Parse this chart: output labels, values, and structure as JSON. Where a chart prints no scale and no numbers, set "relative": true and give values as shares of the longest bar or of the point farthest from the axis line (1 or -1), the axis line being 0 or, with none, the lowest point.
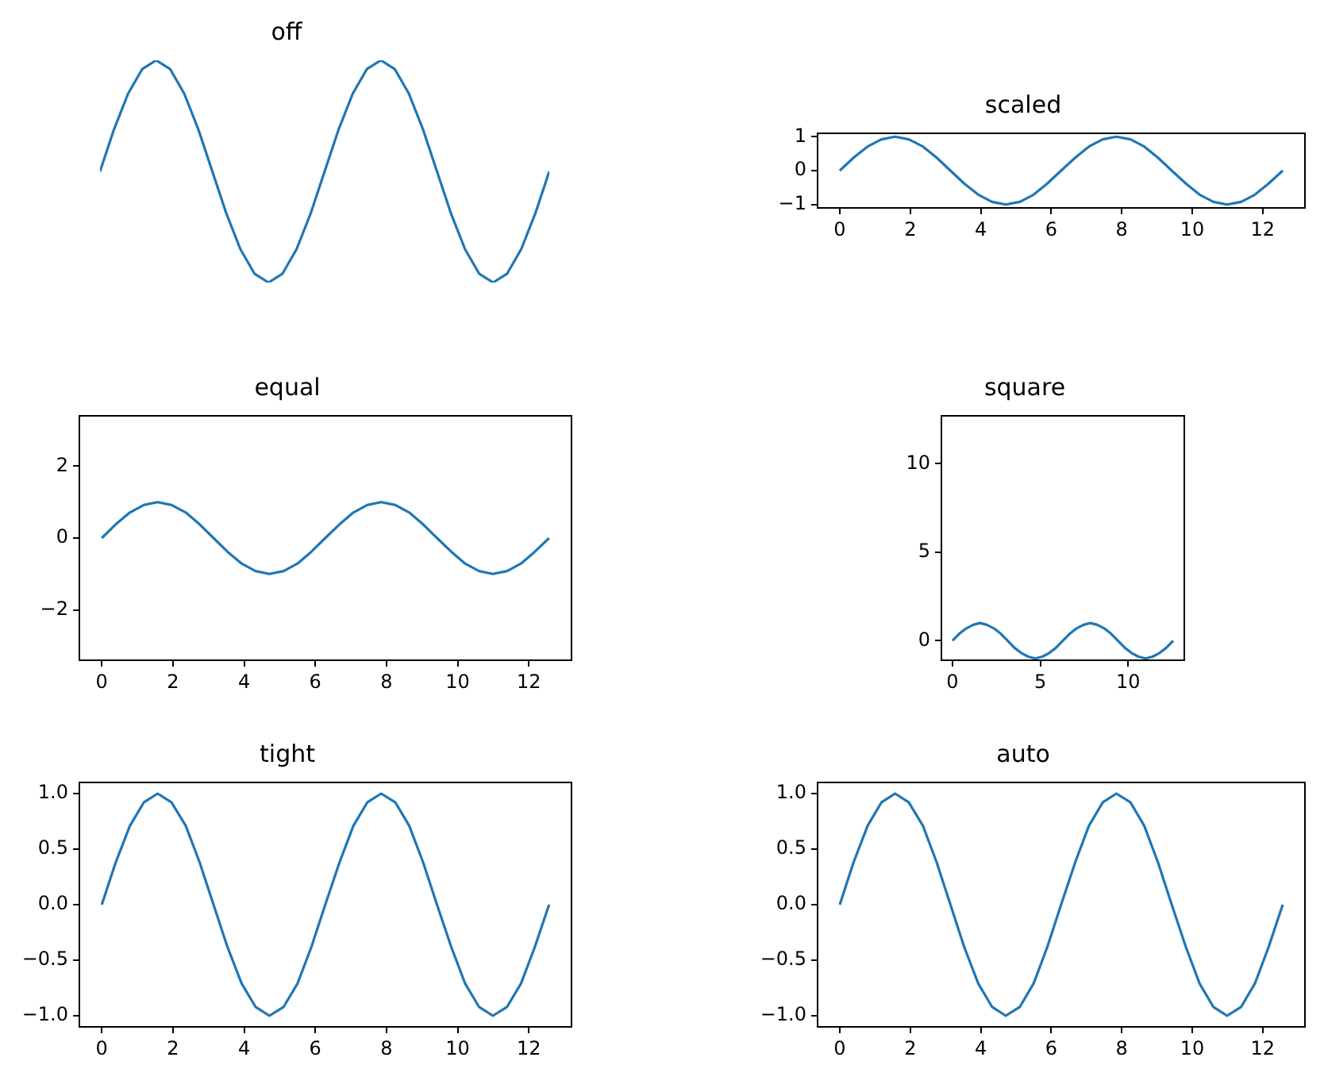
{
  "chart_data": [
    {
      "type": "line",
      "title": "off",
      "relative": true,
      "grid": false,
      "categories": [
        null,
        null,
        null,
        null,
        null,
        null,
        null,
        null,
        null,
        null,
        null,
        null,
        null,
        null,
        null,
        null,
        null,
        null,
        null,
        null,
        null,
        null,
        null,
        null,
        null,
        null,
        null,
        null,
        null,
        null,
        null,
        null,
        null
      ],
      "series": [
        {
          "color": "#1f77b4",
          "values": [
            0.5,
            0.69,
            0.85,
            0.96,
            1,
            0.96,
            0.85,
            0.69,
            0.5,
            0.31,
            0.15,
            0.04,
            0,
            0.04,
            0.15,
            0.31,
            0.5,
            0.69,
            0.85,
            0.96,
            1,
            0.96,
            0.85,
            0.69,
            0.5,
            0.31,
            0.15,
            0.04,
            0,
            0.04,
            0.15,
            0.31,
            0.5
          ]
        }
      ]
    },
    {
      "type": "line",
      "title": "scaled",
      "grid": false,
      "x": [
        0,
        0.39,
        0.79,
        1.18,
        1.57,
        1.96,
        2.36,
        2.75,
        3.14,
        3.53,
        3.93,
        4.32,
        4.71,
        5.11,
        5.5,
        5.89,
        6.28,
        6.68,
        7.07,
        7.46,
        7.85,
        8.25,
        8.64,
        9.03,
        9.42,
        9.82,
        10.21,
        10.6,
        10.99,
        11.39,
        11.78,
        12.17,
        12.57
      ],
      "series": [
        {
          "color": "#1f77b4",
          "values": [
            0,
            0.38,
            0.71,
            0.92,
            1,
            0.92,
            0.71,
            0.38,
            0,
            -0.38,
            -0.71,
            -0.92,
            -1,
            -0.92,
            -0.71,
            -0.38,
            0,
            0.38,
            0.71,
            0.92,
            1,
            0.92,
            0.71,
            0.38,
            0,
            -0.38,
            -0.71,
            -0.92,
            -1,
            -0.92,
            -0.71,
            -0.38,
            0
          ]
        }
      ],
      "xlim": [
        -0.63,
        13.2
      ],
      "ylim": [
        -1.1,
        1.1
      ],
      "xticks": [
        0,
        2,
        4,
        6,
        8,
        10,
        12
      ],
      "yticks": [
        {
          "value": -1,
          "label": "−1"
        },
        0,
        1
      ]
    },
    {
      "type": "line",
      "title": "equal",
      "grid": false,
      "x": [
        0,
        0.39,
        0.79,
        1.18,
        1.57,
        1.96,
        2.36,
        2.75,
        3.14,
        3.53,
        3.93,
        4.32,
        4.71,
        5.11,
        5.5,
        5.89,
        6.28,
        6.68,
        7.07,
        7.46,
        7.85,
        8.25,
        8.64,
        9.03,
        9.42,
        9.82,
        10.21,
        10.6,
        10.99,
        11.39,
        11.78,
        12.17,
        12.57
      ],
      "series": [
        {
          "color": "#1f77b4",
          "values": [
            0,
            0.38,
            0.71,
            0.92,
            1,
            0.92,
            0.71,
            0.38,
            0,
            -0.38,
            -0.71,
            -0.92,
            -1,
            -0.92,
            -0.71,
            -0.38,
            0,
            0.38,
            0.71,
            0.92,
            1,
            0.92,
            0.71,
            0.38,
            0,
            -0.38,
            -0.71,
            -0.92,
            -1,
            -0.92,
            -0.71,
            -0.38,
            0
          ]
        }
      ],
      "xlim": [
        -0.63,
        13.2
      ],
      "ylim": [
        -3.4,
        3.4
      ],
      "xticks": [
        0,
        2,
        4,
        6,
        8,
        10,
        12
      ],
      "yticks": [
        {
          "value": -2,
          "label": "−2"
        },
        0,
        2
      ]
    },
    {
      "type": "line",
      "title": "square",
      "grid": false,
      "x": [
        0,
        0.39,
        0.79,
        1.18,
        1.57,
        1.96,
        2.36,
        2.75,
        3.14,
        3.53,
        3.93,
        4.32,
        4.71,
        5.11,
        5.5,
        5.89,
        6.28,
        6.68,
        7.07,
        7.46,
        7.85,
        8.25,
        8.64,
        9.03,
        9.42,
        9.82,
        10.21,
        10.6,
        10.99,
        11.39,
        11.78,
        12.17,
        12.57
      ],
      "series": [
        {
          "color": "#1f77b4",
          "values": [
            0,
            0.4,
            0.7,
            0.9,
            1,
            0.9,
            0.7,
            0.4,
            0,
            -0.4,
            -0.7,
            -0.9,
            -1,
            -0.9,
            -0.7,
            -0.4,
            0,
            0.4,
            0.7,
            0.9,
            1,
            0.9,
            0.7,
            0.4,
            0,
            -0.4,
            -0.7,
            -0.9,
            -1,
            -0.9,
            -0.7,
            -0.4,
            0
          ]
        }
      ],
      "xlim": [
        -0.63,
        13.2
      ],
      "ylim": [
        -1.1,
        12.7
      ],
      "xticks": [
        0,
        5,
        10
      ],
      "yticks": [
        0,
        5,
        10
      ]
    },
    {
      "type": "line",
      "title": "tight",
      "grid": false,
      "x": [
        0,
        0.39,
        0.79,
        1.18,
        1.57,
        1.96,
        2.36,
        2.75,
        3.14,
        3.53,
        3.93,
        4.32,
        4.71,
        5.11,
        5.5,
        5.89,
        6.28,
        6.68,
        7.07,
        7.46,
        7.85,
        8.25,
        8.64,
        9.03,
        9.42,
        9.82,
        10.21,
        10.6,
        10.99,
        11.39,
        11.78,
        12.17,
        12.57
      ],
      "series": [
        {
          "color": "#1f77b4",
          "values": [
            0,
            0.38,
            0.71,
            0.92,
            1,
            0.92,
            0.71,
            0.38,
            0,
            -0.38,
            -0.71,
            -0.92,
            -1,
            -0.92,
            -0.71,
            -0.38,
            0,
            0.38,
            0.71,
            0.92,
            1,
            0.92,
            0.71,
            0.38,
            0,
            -0.38,
            -0.71,
            -0.92,
            -1,
            -0.92,
            -0.71,
            -0.38,
            0
          ]
        }
      ],
      "xlim": [
        -0.63,
        13.2
      ],
      "ylim": [
        -1.1,
        1.1
      ],
      "xticks": [
        0,
        2,
        4,
        6,
        8,
        10,
        12
      ],
      "yticks": [
        {
          "value": -1,
          "label": "−1.0"
        },
        {
          "value": -0.5,
          "label": "−0.5"
        },
        {
          "value": 0,
          "label": "0.0"
        },
        {
          "value": 0.5,
          "label": "0.5"
        },
        {
          "value": 1,
          "label": "1.0"
        }
      ]
    },
    {
      "type": "line",
      "title": "auto",
      "grid": false,
      "x": [
        0,
        0.39,
        0.79,
        1.18,
        1.57,
        1.96,
        2.36,
        2.75,
        3.14,
        3.53,
        3.93,
        4.32,
        4.71,
        5.11,
        5.5,
        5.89,
        6.28,
        6.68,
        7.07,
        7.46,
        7.85,
        8.25,
        8.64,
        9.03,
        9.42,
        9.82,
        10.21,
        10.6,
        10.99,
        11.39,
        11.78,
        12.17,
        12.57
      ],
      "series": [
        {
          "color": "#1f77b4",
          "values": [
            0,
            0.38,
            0.71,
            0.92,
            1,
            0.92,
            0.71,
            0.38,
            0,
            -0.38,
            -0.71,
            -0.92,
            -1,
            -0.92,
            -0.71,
            -0.38,
            0,
            0.38,
            0.71,
            0.92,
            1,
            0.92,
            0.71,
            0.38,
            0,
            -0.38,
            -0.71,
            -0.92,
            -1,
            -0.92,
            -0.71,
            -0.38,
            0
          ]
        }
      ],
      "xlim": [
        -0.63,
        13.2
      ],
      "ylim": [
        -1.1,
        1.1
      ],
      "xticks": [
        0,
        2,
        4,
        6,
        8,
        10,
        12
      ],
      "yticks": [
        {
          "value": -1,
          "label": "−1.0"
        },
        {
          "value": -0.5,
          "label": "−0.5"
        },
        {
          "value": 0,
          "label": "0.0"
        },
        {
          "value": 0.5,
          "label": "0.5"
        },
        {
          "value": 1,
          "label": "1.0"
        }
      ]
    }
  ]
}
